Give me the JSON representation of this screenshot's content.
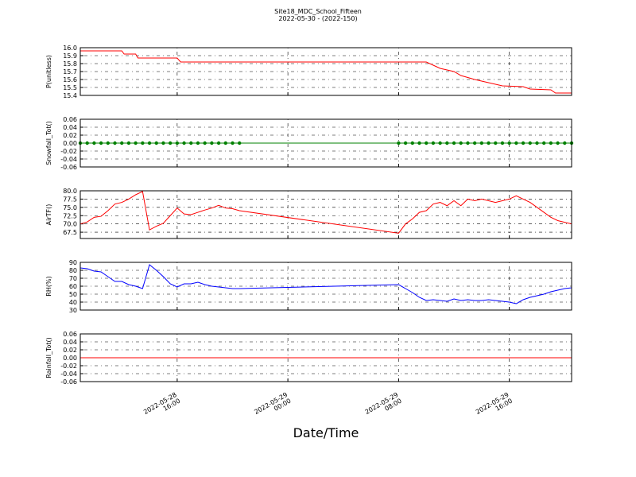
{
  "title": "Site18_MDC_School_Fifteen",
  "subtitle": "2022-05-30 - (2022-150)",
  "xlabel": "Date/Time",
  "chart_data": [
    {
      "type": "line",
      "ylabel": "P(unitless)",
      "x": [
        "2022-05-28 09:00",
        "2022-05-28 12:00",
        "2022-05-28 12:10",
        "2022-05-28 13:00",
        "2022-05-28 13:10",
        "2022-05-28 16:00",
        "2022-05-28 16:15",
        "2022-05-29 10:00",
        "2022-05-29 10:30",
        "2022-05-29 11:00",
        "2022-05-29 12:00",
        "2022-05-29 12:30",
        "2022-05-29 13:30",
        "2022-05-29 14:30",
        "2022-05-29 15:30",
        "2022-05-29 17:00",
        "2022-05-29 17:30",
        "2022-05-29 19:00",
        "2022-05-29 19:20",
        "2022-05-29 20:30"
      ],
      "series": [
        {
          "color": "#ff0000",
          "markers": false,
          "values": [
            15.96,
            15.96,
            15.92,
            15.92,
            15.87,
            15.87,
            15.82,
            15.82,
            15.78,
            15.74,
            15.7,
            15.65,
            15.6,
            15.56,
            15.52,
            15.51,
            15.48,
            15.47,
            15.43,
            15.43
          ]
        }
      ],
      "xlim": [
        "2022-05-28 09:00",
        "2022-05-29 20:30"
      ],
      "ylim": [
        15.4,
        16.0
      ],
      "yticks": [
        15.4,
        15.5,
        15.6,
        15.7,
        15.8,
        15.9,
        {
          "value": 16,
          "label": "16.0"
        }
      ],
      "grid": true
    },
    {
      "type": "line",
      "ylabel": "Snowfall_Tot()",
      "x": [
        "2022-05-28 09:00",
        "2022-05-28 09:30",
        "2022-05-28 10:00",
        "2022-05-28 10:30",
        "2022-05-28 11:00",
        "2022-05-28 11:30",
        "2022-05-28 12:00",
        "2022-05-28 12:30",
        "2022-05-28 13:00",
        "2022-05-28 13:30",
        "2022-05-28 14:00",
        "2022-05-28 14:30",
        "2022-05-28 15:00",
        "2022-05-28 15:30",
        "2022-05-28 16:00",
        "2022-05-28 16:30",
        "2022-05-28 17:00",
        "2022-05-28 17:30",
        "2022-05-28 18:00",
        "2022-05-28 18:30",
        "2022-05-28 19:00",
        "2022-05-28 19:30",
        "2022-05-28 20:00",
        "2022-05-28 20:30",
        "2022-05-29 08:00",
        "2022-05-29 08:30",
        "2022-05-29 09:00",
        "2022-05-29 09:30",
        "2022-05-29 10:00",
        "2022-05-29 10:30",
        "2022-05-29 11:00",
        "2022-05-29 11:30",
        "2022-05-29 12:00",
        "2022-05-29 12:30",
        "2022-05-29 13:00",
        "2022-05-29 13:30",
        "2022-05-29 14:00",
        "2022-05-29 14:30",
        "2022-05-29 15:00",
        "2022-05-29 15:30",
        "2022-05-29 16:00",
        "2022-05-29 16:30",
        "2022-05-29 17:00",
        "2022-05-29 17:30",
        "2022-05-29 18:00",
        "2022-05-29 18:30",
        "2022-05-29 19:00",
        "2022-05-29 19:30",
        "2022-05-29 20:00",
        "2022-05-29 20:30"
      ],
      "series": [
        {
          "color": "#008000",
          "markers": true,
          "values": [
            0,
            0,
            0,
            0,
            0,
            0,
            0,
            0,
            0,
            0,
            0,
            0,
            0,
            0,
            0,
            0,
            0,
            0,
            0,
            0,
            0,
            0,
            0,
            0,
            0,
            0,
            0,
            0,
            0,
            0,
            0,
            0,
            0,
            0,
            0,
            0,
            0,
            0,
            0,
            0,
            0,
            0,
            0,
            0,
            0,
            0,
            0,
            0,
            0,
            0
          ]
        }
      ],
      "xlim": [
        "2022-05-28 09:00",
        "2022-05-29 20:30"
      ],
      "ylim": [
        -0.06,
        0.06
      ],
      "yticks": [
        -0.06,
        -0.04,
        -0.02,
        {
          "value": 0,
          "label": "0.00"
        },
        0.02,
        0.04,
        0.06
      ],
      "grid": true
    },
    {
      "type": "line",
      "ylabel": "AirTF()",
      "x": [
        "2022-05-28 09:00",
        "2022-05-28 09:30",
        "2022-05-28 10:00",
        "2022-05-28 10:30",
        "2022-05-28 11:00",
        "2022-05-28 11:30",
        "2022-05-28 12:00",
        "2022-05-28 12:30",
        "2022-05-28 13:00",
        "2022-05-28 13:30",
        "2022-05-28 14:00",
        "2022-05-28 14:30",
        "2022-05-28 15:00",
        "2022-05-28 15:30",
        "2022-05-28 16:00",
        "2022-05-28 16:30",
        "2022-05-28 17:00",
        "2022-05-28 17:30",
        "2022-05-28 18:00",
        "2022-05-28 18:30",
        "2022-05-28 19:00",
        "2022-05-28 19:30",
        "2022-05-28 20:00",
        "2022-05-28 20:30",
        "2022-05-29 08:00",
        "2022-05-29 08:30",
        "2022-05-29 09:00",
        "2022-05-29 09:30",
        "2022-05-29 10:00",
        "2022-05-29 10:30",
        "2022-05-29 11:00",
        "2022-05-29 11:30",
        "2022-05-29 12:00",
        "2022-05-29 12:30",
        "2022-05-29 13:00",
        "2022-05-29 13:30",
        "2022-05-29 14:00",
        "2022-05-29 14:30",
        "2022-05-29 15:00",
        "2022-05-29 15:30",
        "2022-05-29 16:00",
        "2022-05-29 16:30",
        "2022-05-29 17:00",
        "2022-05-29 17:30",
        "2022-05-29 18:00",
        "2022-05-29 18:30",
        "2022-05-29 19:00",
        "2022-05-29 19:30",
        "2022-05-29 20:00",
        "2022-05-29 20:30"
      ],
      "series": [
        {
          "color": "#ff0000",
          "markers": false,
          "values": [
            70,
            70.6,
            72,
            72.3,
            74,
            76,
            76.5,
            77.5,
            78.8,
            79.8,
            68.2,
            69.3,
            70.2,
            72.5,
            74.8,
            73,
            72.8,
            73.5,
            74.2,
            74.8,
            75.6,
            74.8,
            74.6,
            74,
            67.2,
            70,
            71.5,
            73.5,
            74,
            76,
            76.5,
            75.5,
            77,
            75.5,
            77.5,
            77,
            77.5,
            77,
            76.5,
            77,
            77.5,
            78.5,
            77.5,
            76.5,
            75,
            73.5,
            72,
            71,
            70.5,
            70
          ]
        }
      ],
      "xlim": [
        "2022-05-28 09:00",
        "2022-05-29 20:30"
      ],
      "ylim": [
        65.6,
        80
      ],
      "yticks": [
        67.5,
        {
          "value": 70,
          "label": "70.0"
        },
        72.5,
        {
          "value": 75,
          "label": "75.0"
        },
        77.5,
        {
          "value": 80,
          "label": "80.0"
        }
      ],
      "grid": true
    },
    {
      "type": "line",
      "ylabel": "RH(%)",
      "x": [
        "2022-05-28 09:00",
        "2022-05-28 09:30",
        "2022-05-28 10:00",
        "2022-05-28 10:30",
        "2022-05-28 11:00",
        "2022-05-28 11:30",
        "2022-05-28 12:00",
        "2022-05-28 12:30",
        "2022-05-28 13:00",
        "2022-05-28 13:30",
        "2022-05-28 14:00",
        "2022-05-28 14:30",
        "2022-05-28 15:00",
        "2022-05-28 15:30",
        "2022-05-28 16:00",
        "2022-05-28 16:30",
        "2022-05-28 17:00",
        "2022-05-28 17:30",
        "2022-05-28 18:00",
        "2022-05-28 18:30",
        "2022-05-28 19:00",
        "2022-05-28 19:30",
        "2022-05-28 20:00",
        "2022-05-28 20:30",
        "2022-05-29 08:00",
        "2022-05-29 08:30",
        "2022-05-29 09:00",
        "2022-05-29 09:30",
        "2022-05-29 10:00",
        "2022-05-29 10:30",
        "2022-05-29 11:00",
        "2022-05-29 11:30",
        "2022-05-29 12:00",
        "2022-05-29 12:30",
        "2022-05-29 13:00",
        "2022-05-29 13:30",
        "2022-05-29 14:00",
        "2022-05-29 14:30",
        "2022-05-29 15:00",
        "2022-05-29 15:30",
        "2022-05-29 16:00",
        "2022-05-29 16:30",
        "2022-05-29 17:00",
        "2022-05-29 17:30",
        "2022-05-29 18:00",
        "2022-05-29 18:30",
        "2022-05-29 19:00",
        "2022-05-29 19:30",
        "2022-05-29 20:00",
        "2022-05-29 20:30"
      ],
      "series": [
        {
          "color": "#0000ff",
          "markers": false,
          "values": [
            83,
            82,
            79,
            78,
            72,
            66,
            66,
            62,
            60,
            57,
            87,
            80,
            72,
            63,
            59,
            63,
            63,
            65,
            62,
            60,
            59,
            58,
            57,
            57,
            62,
            57,
            52,
            46,
            42,
            43,
            42,
            41,
            44,
            42,
            43,
            42,
            42,
            43,
            42,
            41,
            40,
            38,
            43,
            46,
            48,
            50,
            53,
            55,
            57,
            58
          ]
        }
      ],
      "xlim": [
        "2022-05-28 09:00",
        "2022-05-29 20:30"
      ],
      "ylim": [
        30,
        90
      ],
      "yticks": [
        30,
        40,
        50,
        60,
        70,
        80,
        90
      ],
      "grid": true
    },
    {
      "type": "line",
      "ylabel": "Rainfall_Tot()",
      "x": [
        "2022-05-28 09:00",
        "2022-05-28 09:30",
        "2022-05-28 10:00",
        "2022-05-28 10:30",
        "2022-05-28 11:00",
        "2022-05-28 11:30",
        "2022-05-28 12:00",
        "2022-05-28 12:30",
        "2022-05-28 13:00",
        "2022-05-28 13:30",
        "2022-05-28 14:00",
        "2022-05-28 14:30",
        "2022-05-28 15:00",
        "2022-05-28 15:30",
        "2022-05-28 16:00",
        "2022-05-28 16:30",
        "2022-05-28 17:00",
        "2022-05-28 17:30",
        "2022-05-28 18:00",
        "2022-05-28 18:30",
        "2022-05-28 19:00",
        "2022-05-28 19:30",
        "2022-05-28 20:00",
        "2022-05-28 20:30",
        "2022-05-29 08:00",
        "2022-05-29 08:30",
        "2022-05-29 09:00",
        "2022-05-29 09:30",
        "2022-05-29 10:00",
        "2022-05-29 10:30",
        "2022-05-29 11:00",
        "2022-05-29 11:30",
        "2022-05-29 12:00",
        "2022-05-29 12:30",
        "2022-05-29 13:00",
        "2022-05-29 13:30",
        "2022-05-29 14:00",
        "2022-05-29 14:30",
        "2022-05-29 15:00",
        "2022-05-29 15:30",
        "2022-05-29 16:00",
        "2022-05-29 16:30",
        "2022-05-29 17:00",
        "2022-05-29 17:30",
        "2022-05-29 18:00",
        "2022-05-29 18:30",
        "2022-05-29 19:00",
        "2022-05-29 19:30",
        "2022-05-29 20:00",
        "2022-05-29 20:30"
      ],
      "series": [
        {
          "color": "#ff0000",
          "markers": false,
          "values": [
            0,
            0,
            0,
            0,
            0,
            0,
            0,
            0,
            0,
            0,
            0,
            0,
            0,
            0,
            0,
            0,
            0,
            0,
            0,
            0,
            0,
            0,
            0,
            0,
            0,
            0,
            0,
            0,
            0,
            0,
            0,
            0,
            0,
            0,
            0,
            0,
            0,
            0,
            0,
            0,
            0,
            0,
            0,
            0,
            0,
            0,
            0,
            0,
            0,
            0
          ]
        }
      ],
      "xlim": [
        "2022-05-28 09:00",
        "2022-05-29 20:30"
      ],
      "ylim": [
        -0.06,
        0.06
      ],
      "yticks": [
        -0.06,
        -0.04,
        -0.02,
        {
          "value": 0,
          "label": "0.00"
        },
        0.02,
        0.04,
        0.06
      ],
      "xticks": [
        {
          "value": "2022-05-28 16:00",
          "label": "2022-05-28\n16:00"
        },
        {
          "value": "2022-05-29 00:00",
          "label": "2022-05-29\n00:00"
        },
        {
          "value": "2022-05-29 08:00",
          "label": "2022-05-29\n08:00"
        },
        {
          "value": "2022-05-29 16:00",
          "label": "2022-05-29\n16:00"
        }
      ],
      "grid": true
    }
  ]
}
